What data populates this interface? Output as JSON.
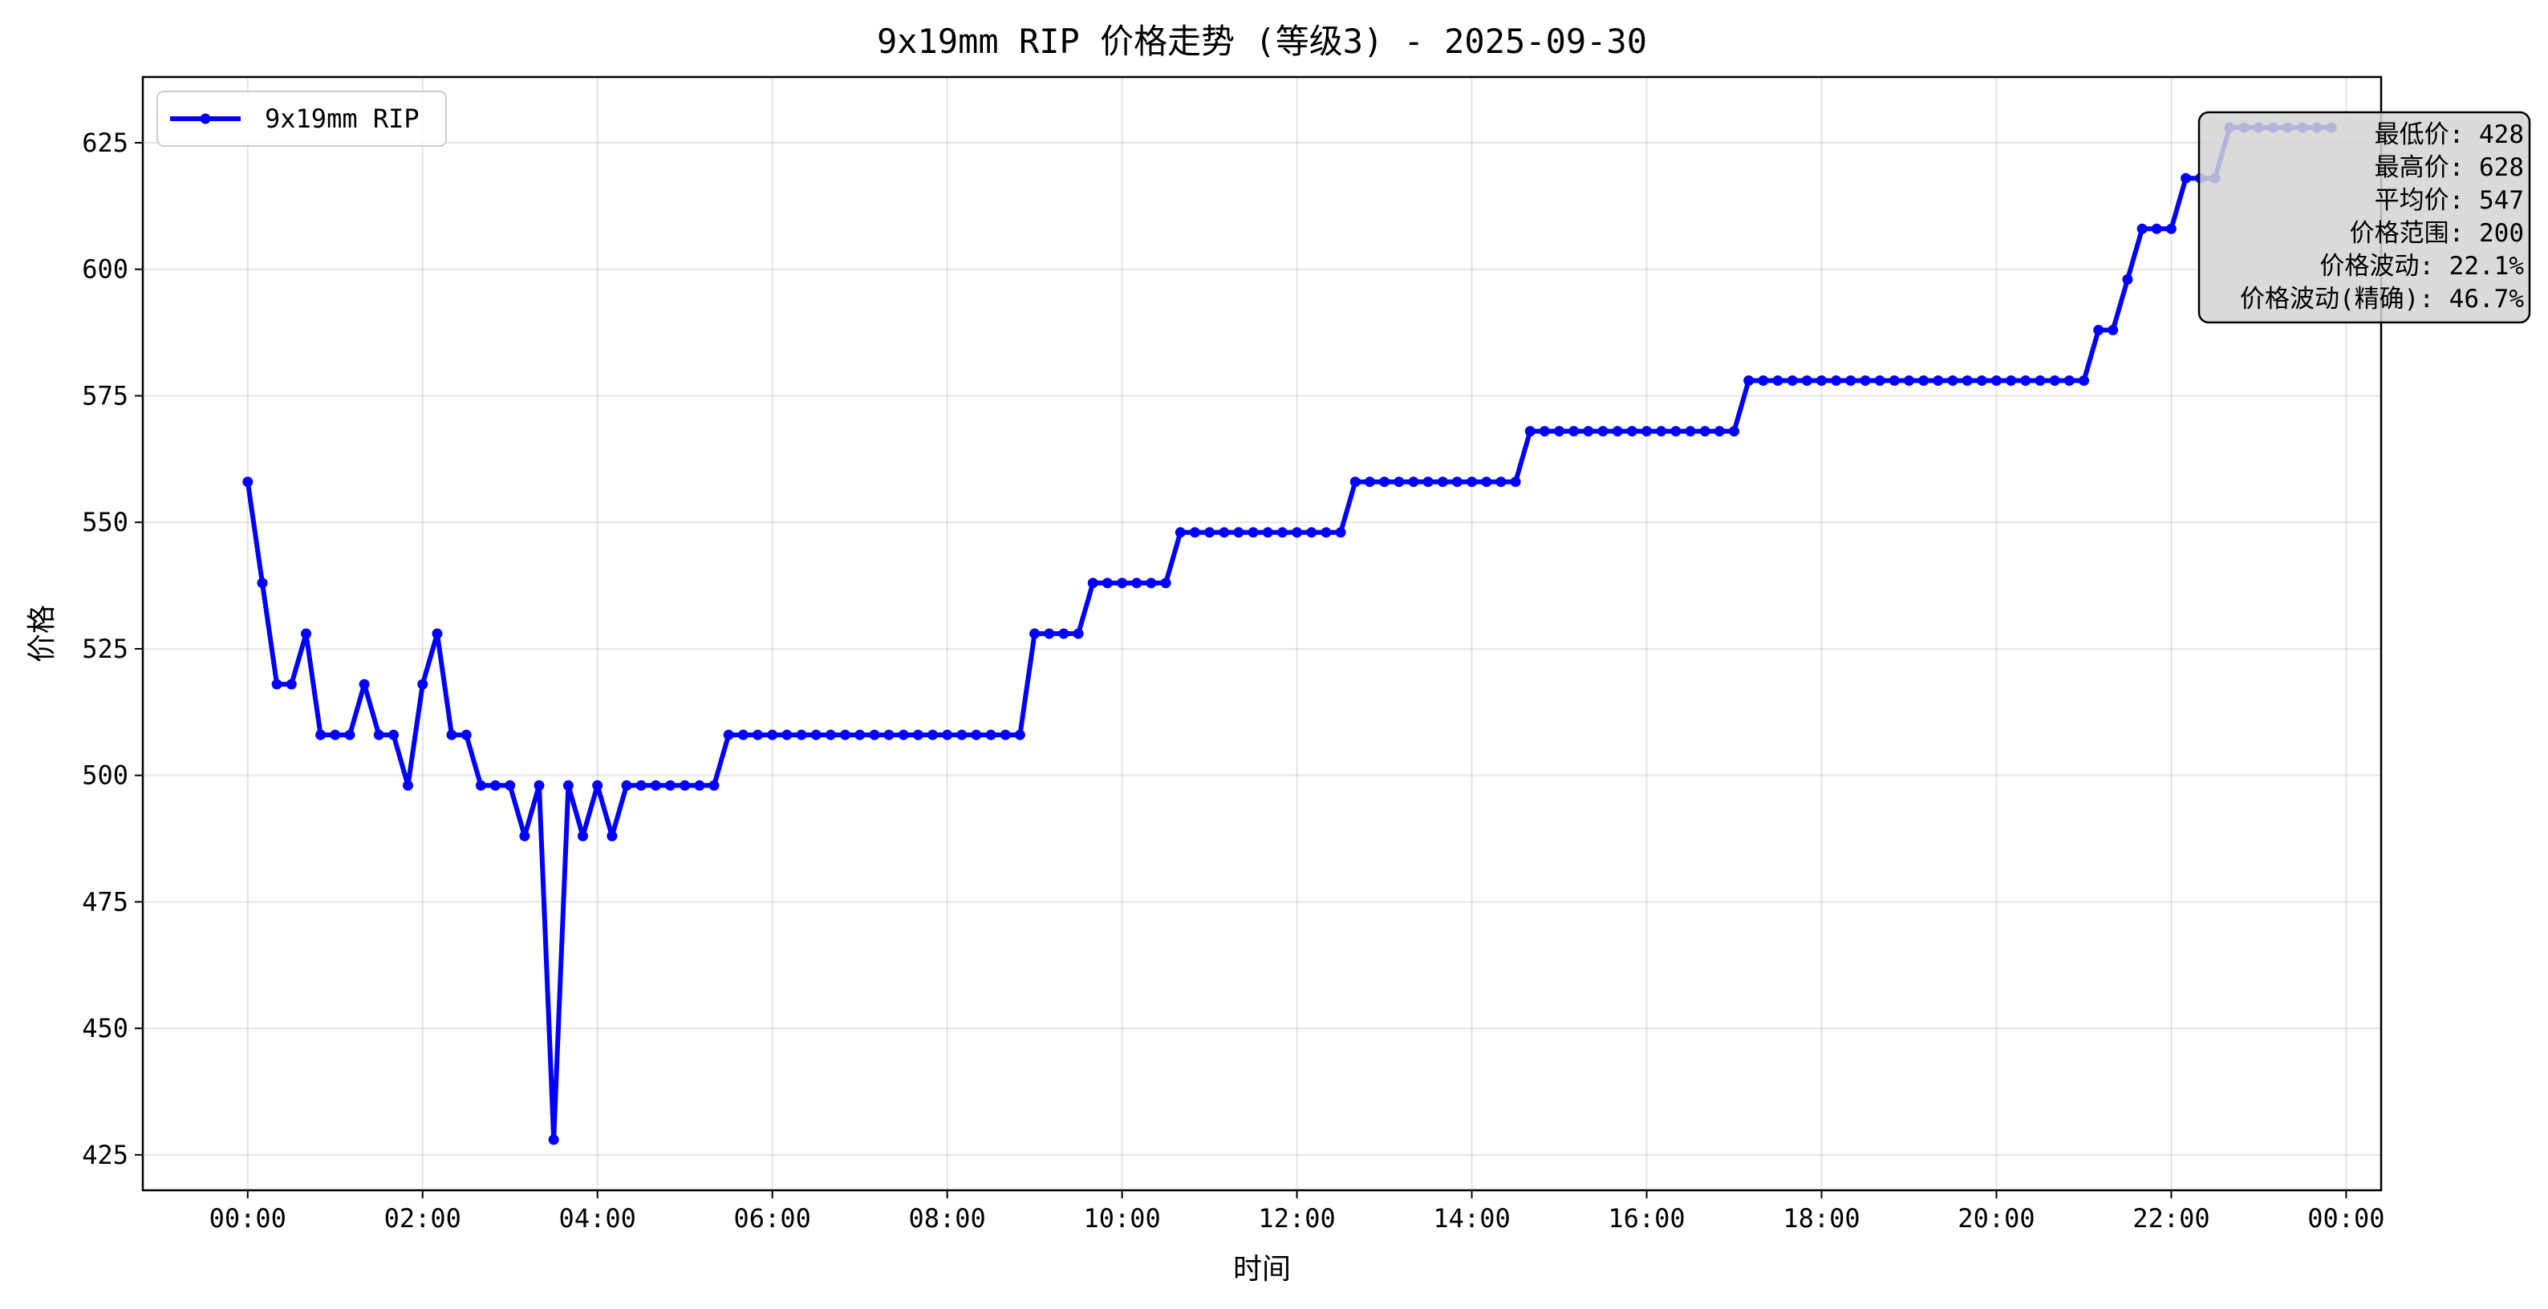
{
  "chart_data": {
    "type": "line",
    "title": "9x19mm RIP 价格走势 (等级3) - 2025-09-30",
    "xlabel": "时间",
    "ylabel": "价格",
    "x_ticks": [
      "00:00",
      "02:00",
      "04:00",
      "06:00",
      "08:00",
      "10:00",
      "12:00",
      "14:00",
      "16:00",
      "18:00",
      "20:00",
      "22:00",
      "00:00"
    ],
    "x_tick_hours": [
      0,
      2,
      4,
      6,
      8,
      10,
      12,
      14,
      16,
      18,
      20,
      22,
      24
    ],
    "xlim_hours": [
      -1.2,
      24.4
    ],
    "y_ticks": [
      425,
      450,
      475,
      500,
      525,
      550,
      575,
      600,
      625
    ],
    "ylim": [
      418,
      638
    ],
    "grid": true,
    "legend_position": "top-left",
    "series": [
      {
        "name": "9x19mm RIP",
        "color": "#0000ff",
        "time_hours": [
          0.0,
          0.167,
          0.333,
          0.5,
          0.667,
          0.833,
          1.0,
          1.167,
          1.333,
          1.5,
          1.667,
          1.833,
          2.0,
          2.167,
          2.333,
          2.5,
          2.667,
          2.833,
          3.0,
          3.167,
          3.333,
          3.5,
          3.667,
          3.833,
          4.0,
          4.167,
          4.333,
          4.5,
          4.667,
          4.833,
          5.0,
          5.167,
          5.333,
          5.5,
          5.667,
          5.833,
          6.0,
          6.167,
          6.333,
          6.5,
          6.667,
          6.833,
          7.0,
          7.167,
          7.333,
          7.5,
          7.667,
          7.833,
          8.0,
          8.167,
          8.333,
          8.5,
          8.667,
          8.833,
          9.0,
          9.167,
          9.333,
          9.5,
          9.667,
          9.833,
          10.0,
          10.167,
          10.333,
          10.5,
          10.667,
          10.833,
          11.0,
          11.167,
          11.333,
          11.5,
          11.667,
          11.833,
          12.0,
          12.167,
          12.333,
          12.5,
          12.667,
          12.833,
          13.0,
          13.167,
          13.333,
          13.5,
          13.667,
          13.833,
          14.0,
          14.167,
          14.333,
          14.5,
          14.667,
          14.833,
          15.0,
          15.167,
          15.333,
          15.5,
          15.667,
          15.833,
          16.0,
          16.167,
          16.333,
          16.5,
          16.667,
          16.833,
          17.0,
          17.167,
          17.333,
          17.5,
          17.667,
          17.833,
          18.0,
          18.167,
          18.333,
          18.5,
          18.667,
          18.833,
          19.0,
          19.167,
          19.333,
          19.5,
          19.667,
          19.833,
          20.0,
          20.167,
          20.333,
          20.5,
          20.667,
          20.833,
          21.0,
          21.167,
          21.333,
          21.5,
          21.667,
          21.833,
          22.0,
          22.167,
          22.333,
          22.5,
          22.667,
          22.833,
          23.0,
          23.167,
          23.333,
          23.5,
          23.667,
          23.833
        ],
        "values": [
          558,
          538,
          518,
          518,
          528,
          508,
          508,
          508,
          518,
          508,
          508,
          498,
          518,
          528,
          508,
          508,
          498,
          498,
          498,
          488,
          498,
          428,
          498,
          488,
          498,
          488,
          498,
          498,
          498,
          498,
          498,
          498,
          498,
          508,
          508,
          508,
          508,
          508,
          508,
          508,
          508,
          508,
          508,
          508,
          508,
          508,
          508,
          508,
          508,
          508,
          508,
          508,
          508,
          508,
          528,
          528,
          528,
          528,
          538,
          538,
          538,
          538,
          538,
          538,
          548,
          548,
          548,
          548,
          548,
          548,
          548,
          548,
          548,
          548,
          548,
          548,
          558,
          558,
          558,
          558,
          558,
          558,
          558,
          558,
          558,
          558,
          558,
          558,
          568,
          568,
          568,
          568,
          568,
          568,
          568,
          568,
          568,
          568,
          568,
          568,
          568,
          568,
          568,
          578,
          578,
          578,
          578,
          578,
          578,
          578,
          578,
          578,
          578,
          578,
          578,
          578,
          578,
          578,
          578,
          578,
          578,
          578,
          578,
          578,
          578,
          578,
          578,
          588,
          588,
          598,
          608,
          608,
          608,
          618,
          618,
          618,
          628,
          628,
          628,
          628,
          628,
          628,
          628,
          628,
          628,
          628,
          628,
          628
        ]
      }
    ],
    "stats_box": {
      "lines": [
        "最低价: 428",
        "最高价: 628",
        "平均价: 547",
        "价格范围: 200",
        "价格波动: 22.1%",
        "价格波动(精确): 46.7%"
      ],
      "position": "top-right"
    }
  }
}
